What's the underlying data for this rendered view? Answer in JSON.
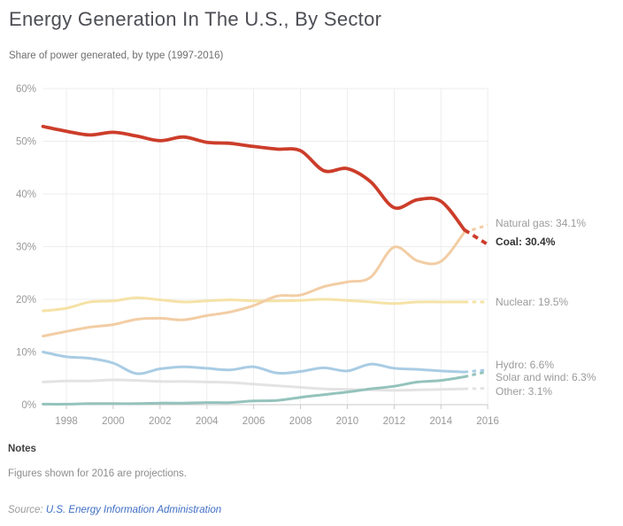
{
  "header": {
    "title": "Energy Generation In The U.S., By Sector",
    "subtitle": "Share of power generated, by type (1997-2016)"
  },
  "chart_data": {
    "type": "line",
    "title": "Energy Generation In The U.S., By Sector",
    "subtitle": "Share of power generated, by type (1997-2016)",
    "x": [
      1997,
      1998,
      1999,
      2000,
      2001,
      2002,
      2003,
      2004,
      2005,
      2006,
      2007,
      2008,
      2009,
      2010,
      2011,
      2012,
      2013,
      2014,
      2015,
      2016
    ],
    "x_ticks": [
      1998,
      2000,
      2002,
      2004,
      2006,
      2008,
      2010,
      2012,
      2014,
      2016
    ],
    "y_ticks": [
      {
        "value": 0,
        "label": "0%"
      },
      {
        "value": 10,
        "label": "10%"
      },
      {
        "value": 20,
        "label": "20%"
      },
      {
        "value": 30,
        "label": "30%"
      },
      {
        "value": 40,
        "label": "40%"
      },
      {
        "value": 50,
        "label": "50%"
      },
      {
        "value": 60,
        "label": "60%"
      }
    ],
    "ylim": [
      0,
      60
    ],
    "x_range": [
      1997,
      2016
    ],
    "grid": true,
    "legend_position": "right-end-labels",
    "projection_start_year": 2015,
    "series": [
      {
        "id": "natural_gas",
        "name": "Natural gas",
        "end_label": "Natural gas: 34.1%",
        "end_value": 34.1,
        "color": "#f2cda4",
        "values": [
          13.0,
          13.9,
          14.7,
          15.2,
          16.2,
          16.4,
          16.1,
          16.9,
          17.6,
          18.8,
          20.6,
          20.8,
          22.4,
          23.3,
          24.2,
          29.9,
          27.3,
          27.2,
          32.7,
          34.1
        ]
      },
      {
        "id": "coal",
        "name": "Coal",
        "end_label": "Coal: 30.4%",
        "end_value": 30.4,
        "color": "#cc3d2a",
        "values": [
          52.8,
          51.9,
          51.2,
          51.7,
          51.0,
          50.1,
          50.8,
          49.8,
          49.6,
          49.0,
          48.5,
          48.2,
          44.4,
          44.8,
          42.3,
          37.4,
          38.9,
          38.6,
          33.2,
          30.4
        ]
      },
      {
        "id": "nuclear",
        "name": "Nuclear",
        "end_label": "Nuclear: 19.5%",
        "end_value": 19.5,
        "color": "#f5e2a6",
        "values": [
          17.8,
          18.3,
          19.5,
          19.7,
          20.3,
          19.9,
          19.5,
          19.7,
          19.9,
          19.7,
          19.7,
          19.8,
          20.0,
          19.8,
          19.5,
          19.2,
          19.5,
          19.5,
          19.5,
          19.5
        ]
      },
      {
        "id": "hydro",
        "name": "Hydro",
        "end_label": "Hydro: 6.6%",
        "end_value": 6.6,
        "color": "#a9cce4",
        "values": [
          10.0,
          9.1,
          8.8,
          7.9,
          5.9,
          6.8,
          7.2,
          6.9,
          6.6,
          7.2,
          6.0,
          6.3,
          7.0,
          6.4,
          7.7,
          6.9,
          6.7,
          6.4,
          6.2,
          6.6
        ]
      },
      {
        "id": "solar_wind",
        "name": "Solar and wind",
        "end_label": "Solar and wind: 6.3%",
        "end_value": 6.3,
        "color": "#94c3bc",
        "values": [
          0.1,
          0.1,
          0.2,
          0.2,
          0.2,
          0.3,
          0.3,
          0.4,
          0.4,
          0.7,
          0.8,
          1.4,
          1.9,
          2.4,
          3.0,
          3.5,
          4.3,
          4.6,
          5.3,
          6.3
        ]
      },
      {
        "id": "other",
        "name": "Other",
        "end_label": "Other: 3.1%",
        "end_value": 3.1,
        "color": "#e3e3e3",
        "values": [
          4.3,
          4.5,
          4.5,
          4.7,
          4.6,
          4.4,
          4.4,
          4.3,
          4.2,
          3.9,
          3.6,
          3.3,
          3.0,
          2.9,
          2.8,
          2.7,
          2.8,
          2.9,
          3.0,
          3.1
        ]
      }
    ]
  },
  "notes": {
    "heading": "Notes",
    "body": "Figures shown for 2016 are projections."
  },
  "source": {
    "prefix": "Source:",
    "link_text": "U.S. Energy Information Administration"
  },
  "colors": {
    "grid": "#ededed",
    "axis": "#c9c9c9",
    "tick_label": "#999999",
    "end_label_gray": "#9b9b9b",
    "end_label_dark": "#333333",
    "link_blue": "#3f6ec4"
  }
}
